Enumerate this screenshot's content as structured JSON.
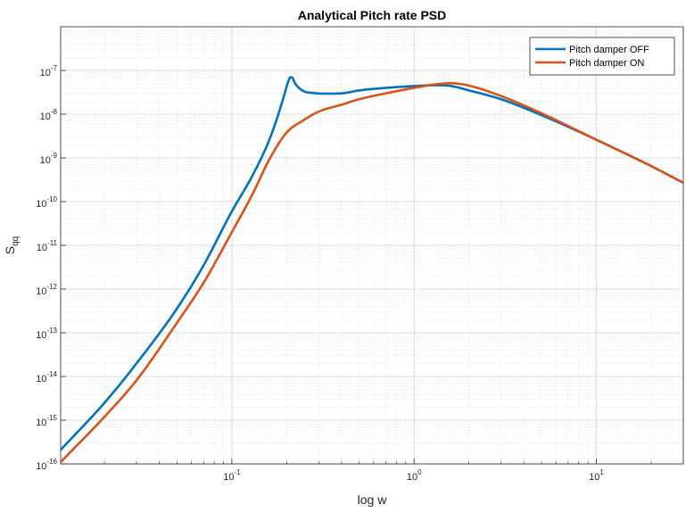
{
  "chart_data": {
    "type": "line",
    "title": "Analytical Pitch rate PSD",
    "xlabel": "log w",
    "ylabel": "S",
    "ylabel_subscript": "qq",
    "xscale": "log",
    "yscale": "log",
    "xlim": [
      0.0115,
      30
    ],
    "ylim": [
      1e-16,
      1e-06
    ],
    "grid": true,
    "minor_grid": true,
    "legend_position": "top-right",
    "x_ticks": [
      {
        "base": "10",
        "exp": "-1",
        "value": 0.1
      },
      {
        "base": "10",
        "exp": "0",
        "value": 1
      },
      {
        "base": "10",
        "exp": "1",
        "value": 10
      }
    ],
    "y_ticks": [
      {
        "base": "10",
        "exp": "-16",
        "value": 1e-16
      },
      {
        "base": "10",
        "exp": "-15",
        "value": 1e-15
      },
      {
        "base": "10",
        "exp": "-14",
        "value": 1e-14
      },
      {
        "base": "10",
        "exp": "-13",
        "value": 1e-13
      },
      {
        "base": "10",
        "exp": "-12",
        "value": 1e-12
      },
      {
        "base": "10",
        "exp": "-11",
        "value": 1e-11
      },
      {
        "base": "10",
        "exp": "-10",
        "value": 1e-10
      },
      {
        "base": "10",
        "exp": "-9",
        "value": 1e-09
      },
      {
        "base": "10",
        "exp": "-8",
        "value": 1e-08
      },
      {
        "base": "10",
        "exp": "-7",
        "value": 1e-07
      }
    ],
    "series": [
      {
        "name": "Pitch damper OFF",
        "color": "#0072BD",
        "x": [
          0.0115,
          0.02,
          0.03,
          0.05,
          0.07,
          0.1,
          0.13,
          0.16,
          0.18,
          0.195,
          0.203,
          0.21,
          0.215,
          0.22,
          0.227,
          0.235,
          0.25,
          0.28,
          0.32,
          0.4,
          0.5,
          0.7,
          1.0,
          1.3,
          1.6,
          2.0,
          3.0,
          5.0,
          10.0,
          20.0,
          30.0
        ],
        "y": [
          2.1e-16,
          2.5e-15,
          2e-14,
          3.6e-13,
          3.5e-12,
          6e-11,
          4e-10,
          2.5e-09,
          1e-08,
          3e-08,
          5.3e-08,
          7e-08,
          6.8e-08,
          5.5e-08,
          4.5e-08,
          3.9e-08,
          3.3e-08,
          3.05e-08,
          2.95e-08,
          3e-08,
          3.5e-08,
          4e-08,
          4.4e-08,
          4.6e-08,
          4.4e-08,
          3.5e-08,
          2.2e-08,
          9.5e-09,
          2.6e-09,
          6.5e-10,
          2.7e-10
        ]
      },
      {
        "name": "Pitch damper ON",
        "color": "#D95319",
        "x": [
          0.0115,
          0.02,
          0.03,
          0.05,
          0.07,
          0.1,
          0.13,
          0.16,
          0.2,
          0.25,
          0.3,
          0.4,
          0.5,
          0.7,
          1.0,
          1.3,
          1.6,
          2.0,
          3.0,
          5.0,
          10.0,
          20.0,
          30.0
        ],
        "y": [
          1.1e-16,
          1.2e-15,
          8.2e-15,
          1.7e-13,
          1.4e-12,
          2e-11,
          1.5e-10,
          9e-10,
          3.8e-09,
          7.5e-09,
          1.15e-08,
          1.65e-08,
          2.2e-08,
          3e-08,
          4e-08,
          4.8e-08,
          5.1e-08,
          4.5e-08,
          2.6e-08,
          1.05e-08,
          2.6e-09,
          6.5e-10,
          2.7e-10
        ]
      }
    ]
  }
}
